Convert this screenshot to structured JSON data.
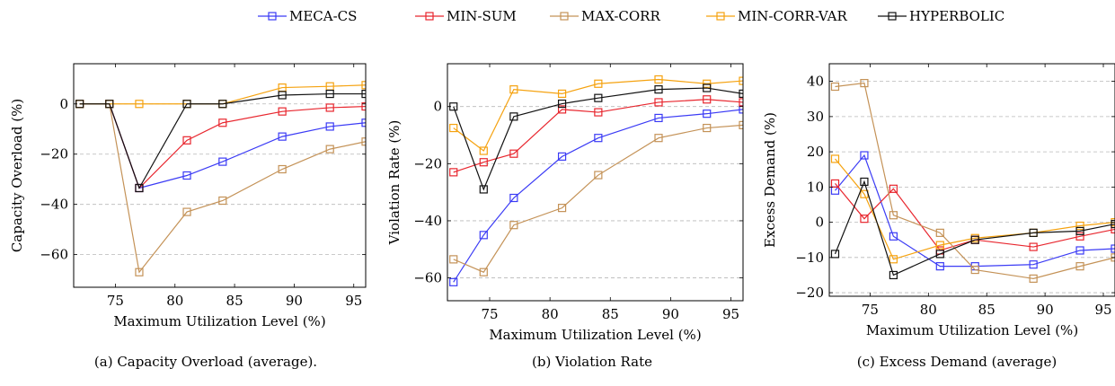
{
  "legend": {
    "placement": "top-center",
    "entries": [
      {
        "label": "MECA-CS",
        "color": "#3b3bf5",
        "marker": "square"
      },
      {
        "label": "MIN-SUM",
        "color": "#e8262e",
        "marker": "square"
      },
      {
        "label": "MAX-CORR",
        "color": "#c49257",
        "marker": "square"
      },
      {
        "label": "MIN-CORR-VAR",
        "color": "#f5a20f",
        "marker": "square"
      },
      {
        "label": "HYPERBOLIC",
        "color": "#111111",
        "marker": "square"
      }
    ]
  },
  "chart_data": [
    {
      "type": "line",
      "title": "",
      "caption": "(a) Capacity Overload (average).",
      "xlabel": "Maximum Utilization Level (%)",
      "ylabel": "Capacity Overload (%)",
      "xlim": [
        71.5,
        96
      ],
      "ylim": [
        -73,
        16
      ],
      "xticks": [
        75,
        80,
        85,
        90,
        95
      ],
      "yticks": [
        0,
        -20,
        -40,
        -60
      ],
      "grid": "horizontal-dashed",
      "x": [
        72,
        74.5,
        77,
        81,
        84,
        89,
        93,
        96
      ],
      "series": [
        {
          "name": "MECA-CS",
          "values": [
            0,
            0,
            -33.5,
            -28.5,
            -23,
            -13,
            -9,
            -7.5
          ]
        },
        {
          "name": "MIN-SUM",
          "values": [
            0,
            0,
            -33.5,
            -14.5,
            -7.5,
            -3,
            -1.5,
            -1
          ]
        },
        {
          "name": "MAX-CORR",
          "values": [
            0,
            0,
            -67,
            -43,
            -38.5,
            -26,
            -18,
            -15
          ]
        },
        {
          "name": "MIN-CORR-VAR",
          "values": [
            0,
            0,
            0,
            0,
            0,
            6.5,
            7,
            7.5
          ]
        },
        {
          "name": "HYPERBOLIC",
          "values": [
            0,
            0,
            -33.5,
            0,
            0,
            3.5,
            4,
            4
          ]
        }
      ]
    },
    {
      "type": "line",
      "title": "",
      "caption": "(b) Violation Rate",
      "xlabel": "Maximum Utilization Level (%)",
      "ylabel": "Violation Rate (%)",
      "xlim": [
        71.5,
        96
      ],
      "ylim": [
        -68,
        15
      ],
      "xticks": [
        75,
        80,
        85,
        90,
        95
      ],
      "yticks": [
        0,
        -20,
        -40,
        -60
      ],
      "grid": "horizontal-dashed",
      "x": [
        72,
        74.5,
        77,
        81,
        84,
        89,
        93,
        96
      ],
      "series": [
        {
          "name": "MECA-CS",
          "values": [
            -61.5,
            -45,
            -32,
            -17.5,
            -11,
            -4,
            -2.5,
            -1
          ]
        },
        {
          "name": "MIN-SUM",
          "values": [
            -23,
            -19.5,
            -16.5,
            -1,
            -2,
            1.5,
            2.5,
            1.5
          ]
        },
        {
          "name": "MAX-CORR",
          "values": [
            -53.5,
            -58,
            -41.5,
            -35.5,
            -24,
            -11,
            -7.5,
            -6.5
          ]
        },
        {
          "name": "MIN-CORR-VAR",
          "values": [
            -7.5,
            -15.5,
            6,
            4.5,
            8,
            9.5,
            8,
            9
          ]
        },
        {
          "name": "HYPERBOLIC",
          "values": [
            0,
            -29,
            -3.5,
            1,
            3,
            6,
            6.5,
            4.5
          ]
        }
      ]
    },
    {
      "type": "line",
      "title": "",
      "caption": "(c) Excess Demand (average)",
      "xlabel": "Maximum Utilization Level (%)",
      "ylabel": "Excess Demand (%)",
      "xlim": [
        71.5,
        96
      ],
      "ylim": [
        -21,
        45
      ],
      "xticks": [
        75,
        80,
        85,
        90,
        95
      ],
      "yticks": [
        40,
        30,
        20,
        10,
        0,
        -10,
        -20
      ],
      "grid": "horizontal-dashed",
      "x": [
        72,
        74.5,
        77,
        81,
        84,
        89,
        93,
        96
      ],
      "series": [
        {
          "name": "MECA-CS",
          "values": [
            9,
            19,
            -4,
            -12.5,
            -12.5,
            -12,
            -8,
            -7.5
          ]
        },
        {
          "name": "MIN-SUM",
          "values": [
            11,
            1,
            9.5,
            -8,
            -5,
            -7,
            -4,
            -2
          ]
        },
        {
          "name": "MAX-CORR",
          "values": [
            38.5,
            39.5,
            2,
            -3,
            -13.5,
            -16,
            -12.5,
            -10
          ]
        },
        {
          "name": "MIN-CORR-VAR",
          "values": [
            18,
            8,
            -10.5,
            -6.5,
            -4.5,
            -3,
            -1,
            0
          ]
        },
        {
          "name": "HYPERBOLIC",
          "values": [
            -9,
            11.5,
            -15,
            -9,
            -5,
            -3,
            -2.5,
            -0.5
          ]
        }
      ]
    }
  ]
}
